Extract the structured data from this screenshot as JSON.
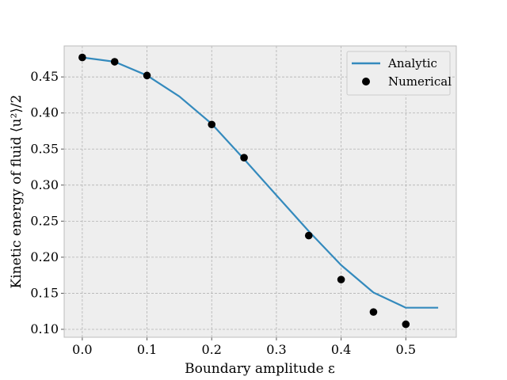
{
  "chart_data": {
    "type": "line",
    "xlabel": "Boundary amplitude ε",
    "ylabel": "Kinetic energy of fluid ⟨u²⟩/2",
    "xlim": [
      -0.028,
      0.578
    ],
    "ylim": [
      0.089,
      0.493
    ],
    "xticks": [
      0.0,
      0.1,
      0.2,
      0.3,
      0.4,
      0.5
    ],
    "xtick_labels": [
      "0.0",
      "0.1",
      "0.2",
      "0.3",
      "0.4",
      "0.5"
    ],
    "yticks": [
      0.1,
      0.15,
      0.2,
      0.25,
      0.3,
      0.35,
      0.4,
      0.45
    ],
    "ytick_labels": [
      "0.10",
      "0.15",
      "0.20",
      "0.25",
      "0.30",
      "0.35",
      "0.40",
      "0.45"
    ],
    "grid": true,
    "legend_position": "top-right",
    "series": [
      {
        "name": "Analytic",
        "kind": "line",
        "color": "#348abd",
        "x": [
          0.0,
          0.05,
          0.1,
          0.15,
          0.2,
          0.25,
          0.3,
          0.35,
          0.4,
          0.45,
          0.5,
          0.55
        ],
        "y": [
          0.477,
          0.471,
          0.452,
          0.423,
          0.385,
          0.336,
          0.286,
          0.236,
          0.189,
          0.151,
          0.13,
          0.13
        ]
      },
      {
        "name": "Numerical",
        "kind": "scatter",
        "color": "#000000",
        "x": [
          0.0,
          0.05,
          0.1,
          0.2,
          0.25,
          0.35,
          0.4,
          0.45,
          0.5
        ],
        "y": [
          0.477,
          0.471,
          0.452,
          0.384,
          0.338,
          0.23,
          0.169,
          0.124,
          0.107
        ]
      }
    ]
  }
}
